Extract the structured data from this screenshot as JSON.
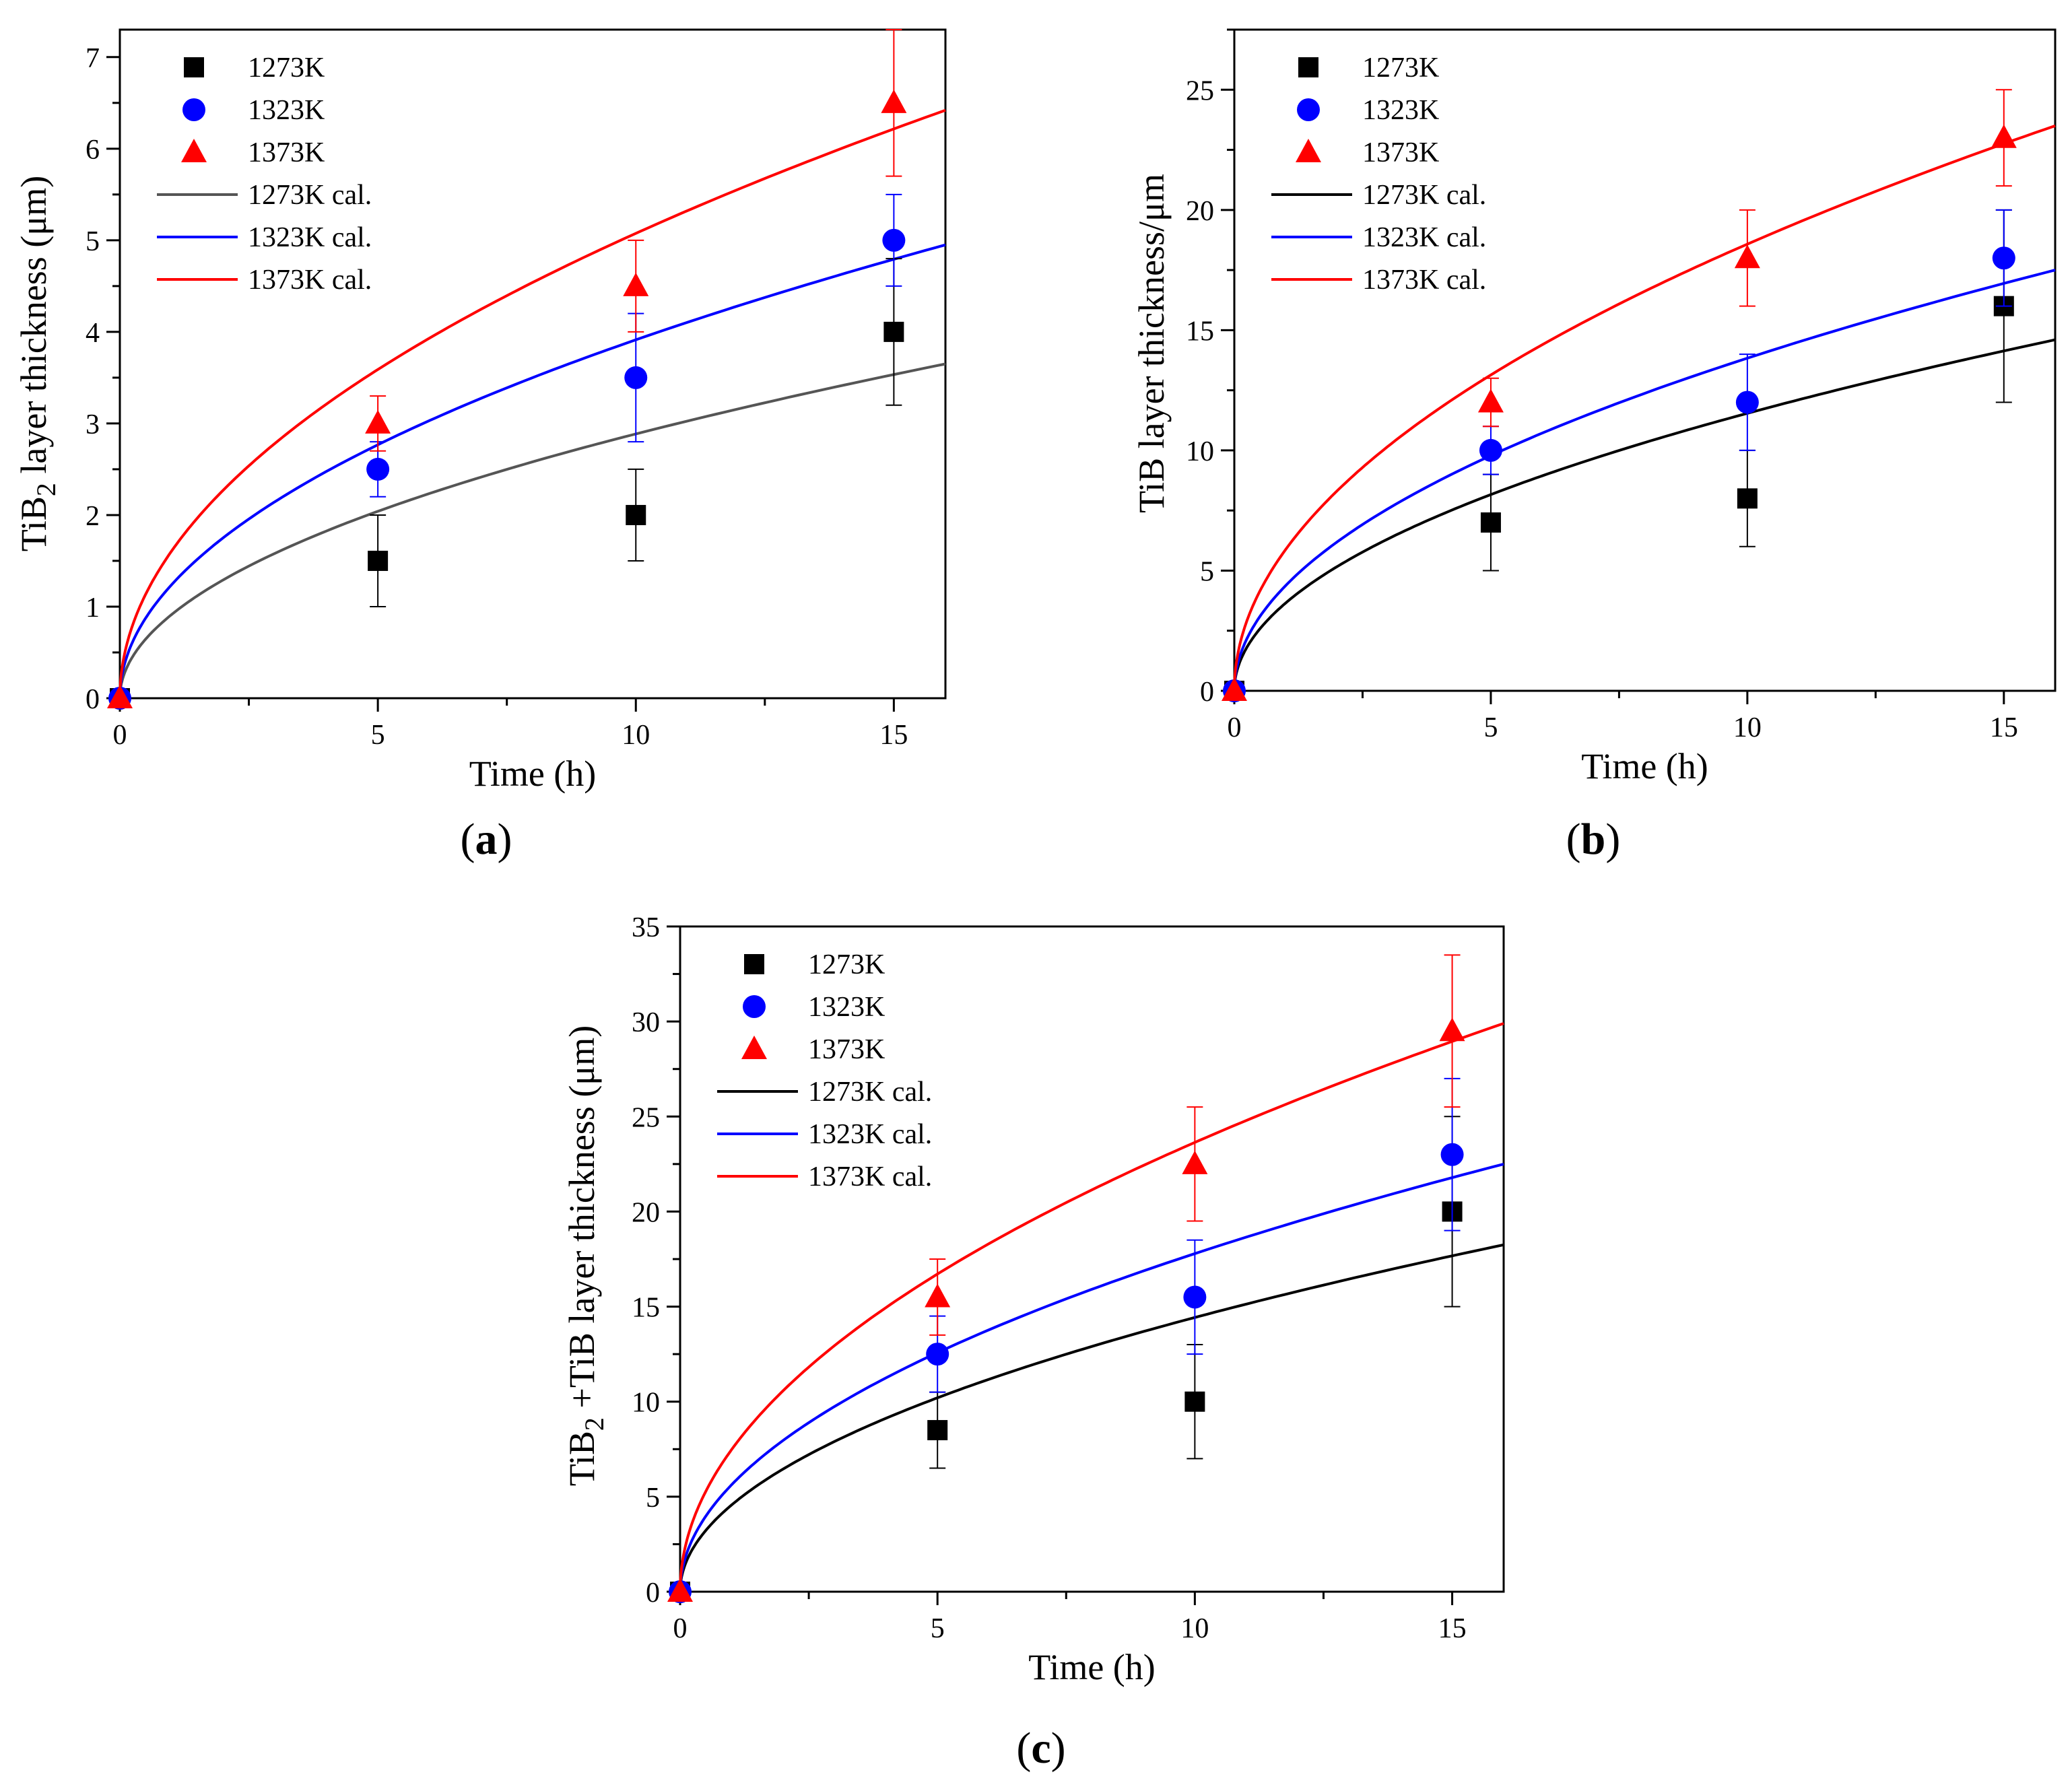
{
  "panel_labels": [
    "a",
    "b",
    "c"
  ],
  "chart_data": [
    {
      "panel": "a",
      "type": "scatter",
      "xlabel": "Time (h)",
      "ylabel_main": "TiB",
      "ylabel_sub": "2",
      "ylabel_rest": " layer thickness (μm)",
      "xlim": [
        0,
        16
      ],
      "ylim": [
        0,
        7.3
      ],
      "xticks": [
        0,
        5,
        10,
        15
      ],
      "yticks": [
        0,
        1,
        2,
        3,
        4,
        5,
        6,
        7
      ],
      "legend_position": "top-left",
      "series": [
        {
          "name": "1273K",
          "marker": "square",
          "color": "#000000",
          "x": [
            0,
            5,
            10,
            15
          ],
          "y": [
            0,
            1.5,
            2.0,
            4.0
          ],
          "err": [
            0,
            0.5,
            0.5,
            0.8
          ]
        },
        {
          "name": "1323K",
          "marker": "circle",
          "color": "#0000ff",
          "x": [
            0,
            5,
            10,
            15
          ],
          "y": [
            0,
            2.5,
            3.5,
            5.0
          ],
          "err": [
            0,
            0.3,
            0.7,
            0.5
          ]
        },
        {
          "name": "1373K",
          "marker": "triangle",
          "color": "#ff0000",
          "x": [
            0,
            5,
            10,
            15
          ],
          "y": [
            0,
            3.0,
            4.5,
            6.5
          ],
          "err": [
            0,
            0.3,
            0.5,
            0.8
          ]
        }
      ],
      "fits": [
        {
          "name": "1273K cal.",
          "color": "#555555",
          "y_at_16h": 3.65
        },
        {
          "name": "1323K cal.",
          "color": "#0000ff",
          "y_at_16h": 4.95
        },
        {
          "name": "1373K cal.",
          "color": "#ff0000",
          "y_at_16h": 6.42
        }
      ]
    },
    {
      "panel": "b",
      "type": "scatter",
      "xlabel": "Time (h)",
      "ylabel_main": "TiB layer thickness/μm",
      "ylabel_sub": "",
      "ylabel_rest": "",
      "xlim": [
        0,
        16
      ],
      "ylim": [
        0,
        27.5
      ],
      "xticks": [
        0,
        5,
        10,
        15
      ],
      "yticks": [
        0,
        5,
        10,
        15,
        20,
        25
      ],
      "legend_position": "top-left",
      "series": [
        {
          "name": "1273K",
          "marker": "square",
          "color": "#000000",
          "x": [
            0,
            5,
            10,
            15
          ],
          "y": [
            0,
            7,
            8,
            16
          ],
          "err": [
            0,
            2,
            2,
            4
          ]
        },
        {
          "name": "1323K",
          "marker": "circle",
          "color": "#0000ff",
          "x": [
            0,
            5,
            10,
            15
          ],
          "y": [
            0,
            10,
            12,
            18
          ],
          "err": [
            0,
            1,
            2,
            2
          ]
        },
        {
          "name": "1373K",
          "marker": "triangle",
          "color": "#ff0000",
          "x": [
            0,
            5,
            10,
            15
          ],
          "y": [
            0,
            12,
            18,
            23
          ],
          "err": [
            0,
            1,
            2,
            2
          ]
        }
      ],
      "fits": [
        {
          "name": "1273K cal.",
          "color": "#000000",
          "y_at_16h": 14.6
        },
        {
          "name": "1323K cal.",
          "color": "#0000ff",
          "y_at_16h": 17.5
        },
        {
          "name": "1373K cal.",
          "color": "#ff0000",
          "y_at_16h": 23.5
        }
      ]
    },
    {
      "panel": "c",
      "type": "scatter",
      "xlabel": "Time (h)",
      "ylabel_main": "TiB",
      "ylabel_sub": "2",
      "ylabel_rest": " +TiB layer thickness (μm)",
      "xlim": [
        0,
        16
      ],
      "ylim": [
        0,
        35
      ],
      "xticks": [
        0,
        5,
        10,
        15
      ],
      "yticks": [
        0,
        5,
        10,
        15,
        20,
        25,
        30,
        35
      ],
      "legend_position": "top-left",
      "series": [
        {
          "name": "1273K",
          "marker": "square",
          "color": "#000000",
          "x": [
            0,
            5,
            10,
            15
          ],
          "y": [
            0,
            8.5,
            10,
            20
          ],
          "err": [
            0,
            2,
            3,
            5
          ]
        },
        {
          "name": "1323K",
          "marker": "circle",
          "color": "#0000ff",
          "x": [
            0,
            5,
            10,
            15
          ],
          "y": [
            0,
            12.5,
            15.5,
            23
          ],
          "err": [
            0,
            2,
            3,
            4
          ]
        },
        {
          "name": "1373K",
          "marker": "triangle",
          "color": "#ff0000",
          "x": [
            0,
            5,
            10,
            15
          ],
          "y": [
            0,
            15.5,
            22.5,
            29.5
          ],
          "err": [
            0,
            2,
            3,
            4
          ]
        }
      ],
      "fits": [
        {
          "name": "1273K cal.",
          "color": "#000000",
          "y_at_16h": 18.25
        },
        {
          "name": "1323K cal.",
          "color": "#0000ff",
          "y_at_16h": 22.5
        },
        {
          "name": "1373K cal.",
          "color": "#ff0000",
          "y_at_16h": 29.9
        }
      ]
    }
  ]
}
